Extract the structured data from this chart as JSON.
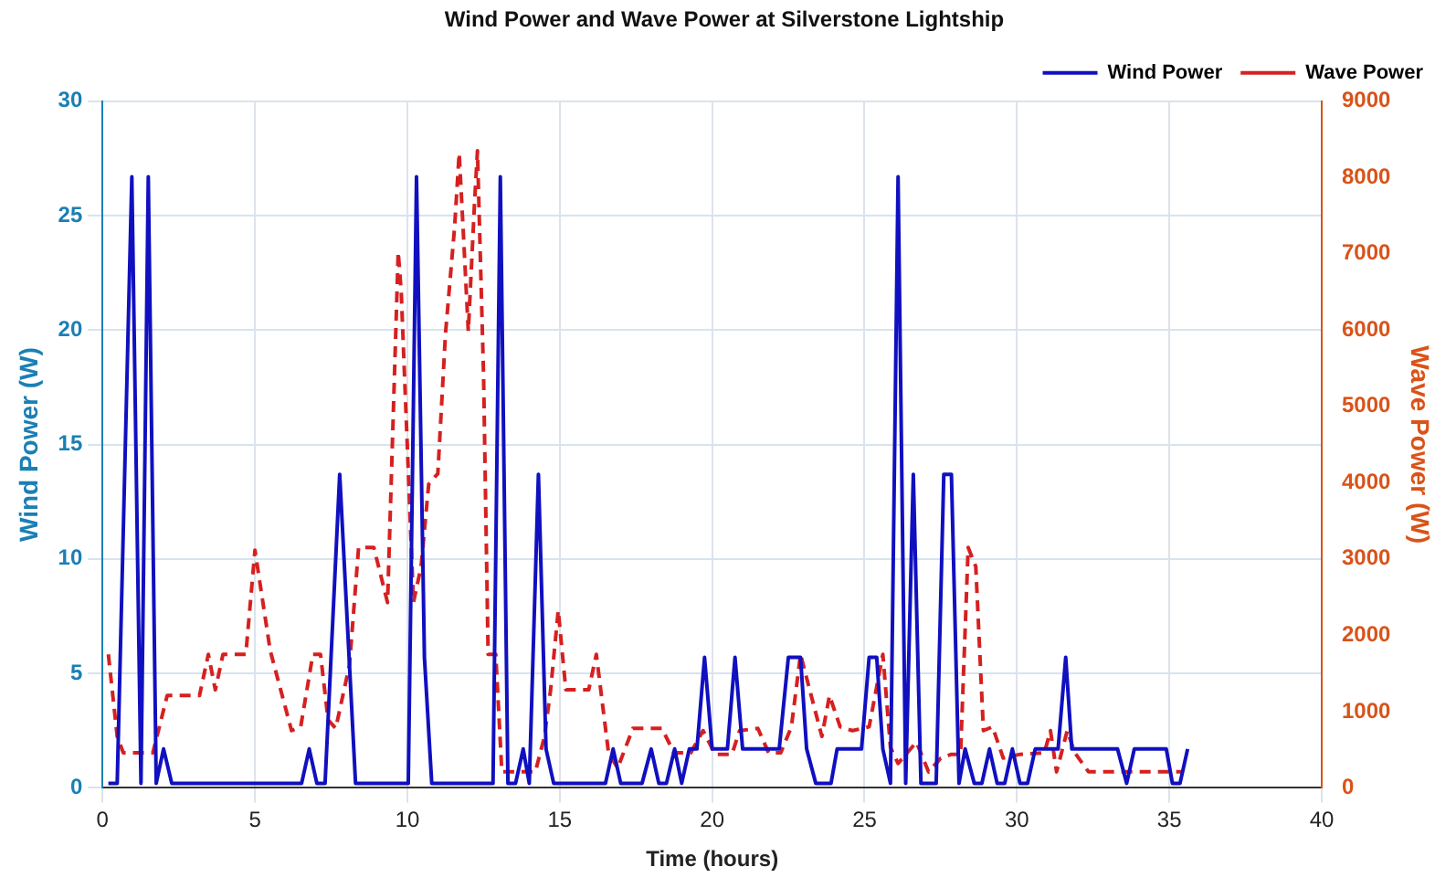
{
  "chart_data": {
    "type": "line",
    "title": "Wind Power and Wave Power at Silverstone Lightship",
    "xlabel": "Time (hours)",
    "ylabel": "Wind Power (W)",
    "y2label": "Wave Power (W)",
    "xlim": [
      0,
      40
    ],
    "xticks": [
      0,
      5,
      10,
      15,
      20,
      25,
      30,
      35,
      40
    ],
    "ylim": [
      0,
      30
    ],
    "yticks": [
      0,
      5,
      10,
      15,
      20,
      25,
      30
    ],
    "y2lim": [
      0,
      9000
    ],
    "y2ticks": [
      0,
      1000,
      2000,
      3000,
      4000,
      5000,
      6000,
      7000,
      8000,
      9000
    ],
    "grid": true,
    "legend": "top right",
    "marker": "none",
    "series": [
      {
        "name": "Wind Power",
        "color": "#1010c0",
        "line_style": "solid",
        "x": [
          0.19,
          0.48,
          0.96,
          1.26,
          1.5,
          1.76,
          2.0,
          2.27,
          6.53,
          6.78,
          7.03,
          7.3,
          7.78,
          8.3,
          10.03,
          10.3,
          10.56,
          10.8,
          12.81,
          13.05,
          13.3,
          13.55,
          13.8,
          14.0,
          14.3,
          14.55,
          14.8,
          16.5,
          16.75,
          17.0,
          17.7,
          18.0,
          18.25,
          18.5,
          18.77,
          19.0,
          19.25,
          19.5,
          19.75,
          20.0,
          20.5,
          20.75,
          21.0,
          22.2,
          22.5,
          22.9,
          23.1,
          23.4,
          23.9,
          24.1,
          24.9,
          25.15,
          25.4,
          25.6,
          25.85,
          26.1,
          26.35,
          26.6,
          26.85,
          27.35,
          27.6,
          27.85,
          28.1,
          28.3,
          28.6,
          28.85,
          29.1,
          29.35,
          29.6,
          29.85,
          30.1,
          30.35,
          30.6,
          31.35,
          31.6,
          31.8,
          33.3,
          33.6,
          33.85,
          34.9,
          35.1,
          35.35,
          35.6
        ],
        "values": [
          0.2,
          0.2,
          26.7,
          0.2,
          26.7,
          0.2,
          1.7,
          0.2,
          0.2,
          1.7,
          0.2,
          0.2,
          13.7,
          0.2,
          0.2,
          26.7,
          5.7,
          0.2,
          0.2,
          26.7,
          0.2,
          0.2,
          1.7,
          0.2,
          13.7,
          1.7,
          0.2,
          0.2,
          1.7,
          0.2,
          0.2,
          1.7,
          0.2,
          0.2,
          1.7,
          0.2,
          1.7,
          1.7,
          5.7,
          1.7,
          1.7,
          5.7,
          1.7,
          1.7,
          5.7,
          5.7,
          1.7,
          0.2,
          0.2,
          1.7,
          1.7,
          5.7,
          5.7,
          1.7,
          0.2,
          26.7,
          0.2,
          13.7,
          0.2,
          0.2,
          13.7,
          13.7,
          0.2,
          1.7,
          0.2,
          0.2,
          1.7,
          0.2,
          0.2,
          1.7,
          0.2,
          0.2,
          1.7,
          1.7,
          5.7,
          1.7,
          1.7,
          0.2,
          1.7,
          1.7,
          0.2,
          0.2,
          1.7
        ]
      },
      {
        "name": "Wave Power",
        "color": "#d62020",
        "line_style": "dashed",
        "axis": "y2",
        "x": [
          0.19,
          0.48,
          0.68,
          1.65,
          2.12,
          3.18,
          3.47,
          3.7,
          3.95,
          4.7,
          5.0,
          5.5,
          6.2,
          6.5,
          6.9,
          7.15,
          7.4,
          7.65,
          8.1,
          8.4,
          8.9,
          9.35,
          9.7,
          9.8,
          10.2,
          10.45,
          10.7,
          11.0,
          11.25,
          11.55,
          11.7,
          11.85,
          12.0,
          12.2,
          12.3,
          12.5,
          12.65,
          12.9,
          13.1,
          14.2,
          14.5,
          14.7,
          14.95,
          15.2,
          15.95,
          16.2,
          16.6,
          16.9,
          17.4,
          18.35,
          18.75,
          19.3,
          19.7,
          20.1,
          20.65,
          20.9,
          21.5,
          21.85,
          22.25,
          22.6,
          22.9,
          23.2,
          23.6,
          23.85,
          24.2,
          24.6,
          25.15,
          25.6,
          25.85,
          26.1,
          26.4,
          26.7,
          27.1,
          27.5,
          27.85,
          28.15,
          28.4,
          28.65,
          28.9,
          29.2,
          29.55,
          30.1,
          30.9,
          31.1,
          31.3,
          31.65,
          31.9,
          32.35,
          35.4
        ],
        "values": [
          1750,
          675,
          460,
          460,
          1210,
          1210,
          1750,
          1285,
          1750,
          1750,
          3115,
          1800,
          750,
          800,
          1750,
          1750,
          890,
          780,
          1610,
          3150,
          3150,
          2430,
          7025,
          6490,
          2430,
          2900,
          3980,
          4120,
          5950,
          7350,
          8320,
          7170,
          5985,
          7640,
          8350,
          5410,
          1750,
          1750,
          210,
          210,
          675,
          1285,
          2325,
          1285,
          1285,
          1750,
          460,
          260,
          780,
          780,
          460,
          460,
          750,
          440,
          440,
          750,
          780,
          460,
          460,
          800,
          1750,
          1285,
          675,
          1210,
          800,
          750,
          800,
          1750,
          530,
          320,
          460,
          600,
          210,
          390,
          440,
          440,
          3150,
          2900,
          750,
          800,
          390,
          440,
          460,
          750,
          210,
          750,
          460,
          210,
          210
        ]
      }
    ]
  }
}
